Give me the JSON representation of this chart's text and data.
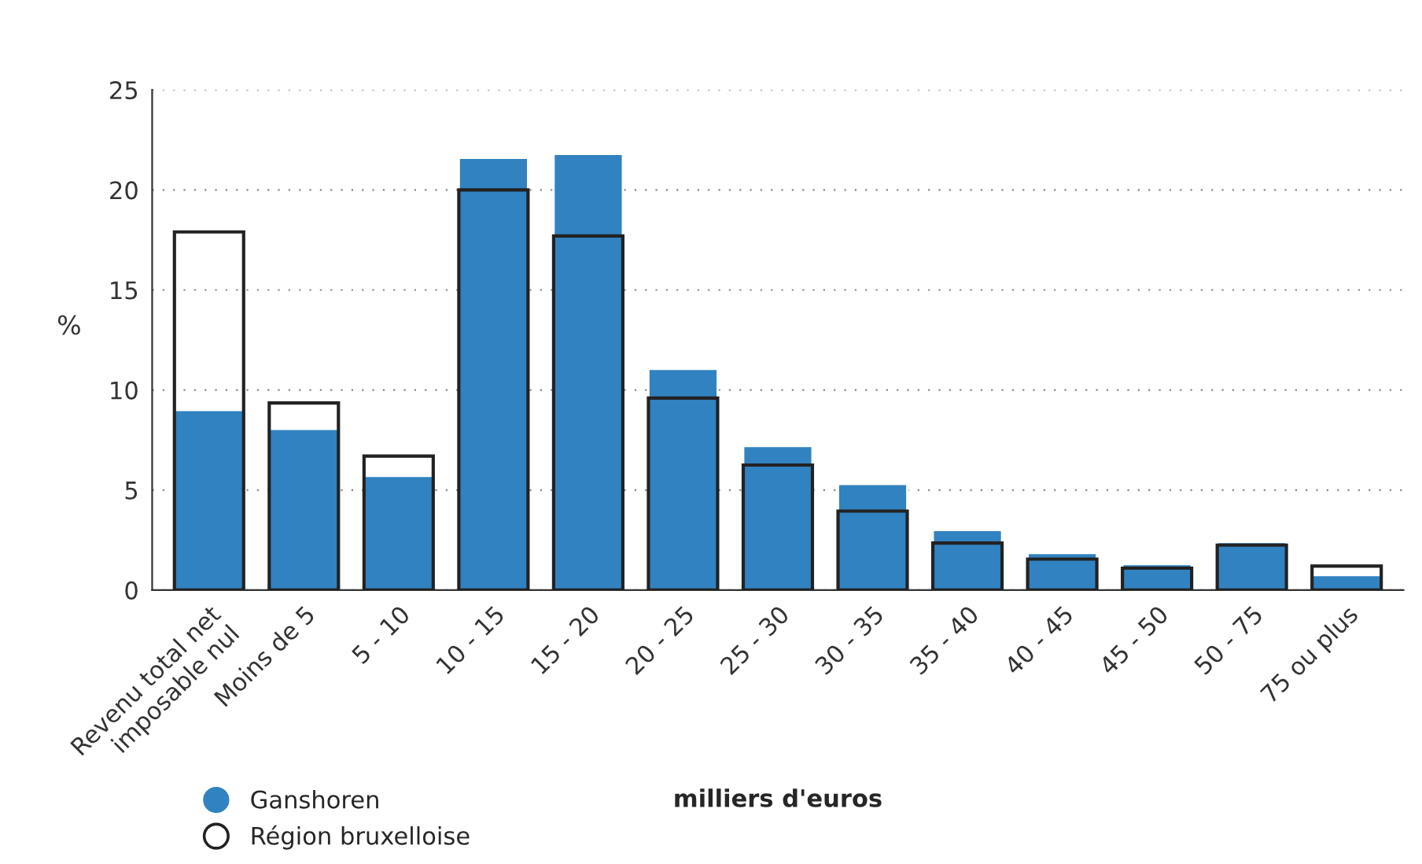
{
  "chart_data": {
    "type": "bar",
    "xlabel": "milliers d'euros",
    "ylabel": "%",
    "categories": [
      "Revenu total net\nimposable nul",
      "Moins de 5",
      "5 - 10",
      "10 - 15",
      "15 - 20",
      "20 - 25",
      "25 - 30",
      "30 - 35",
      "35 - 40",
      "40 - 45",
      "45 - 50",
      "50 - 75",
      "75 ou plus"
    ],
    "series": [
      {
        "name": "Ganshoren",
        "color": "#3182c0",
        "values": [
          9.0,
          8.05,
          5.7,
          21.6,
          21.8,
          11.05,
          7.2,
          5.3,
          3.0,
          1.85,
          1.3,
          2.4,
          0.75
        ]
      },
      {
        "name": "Région bruxelloise",
        "color": "#222222",
        "values": [
          17.9,
          9.35,
          6.7,
          20.0,
          17.7,
          9.6,
          6.25,
          3.95,
          2.35,
          1.55,
          1.1,
          2.25,
          1.2
        ]
      }
    ],
    "ylim": [
      0,
      25
    ],
    "yticks": [
      0,
      5,
      10,
      15,
      20,
      25
    ],
    "grid": "y",
    "legend": "bottom left",
    "marker": "circle"
  }
}
